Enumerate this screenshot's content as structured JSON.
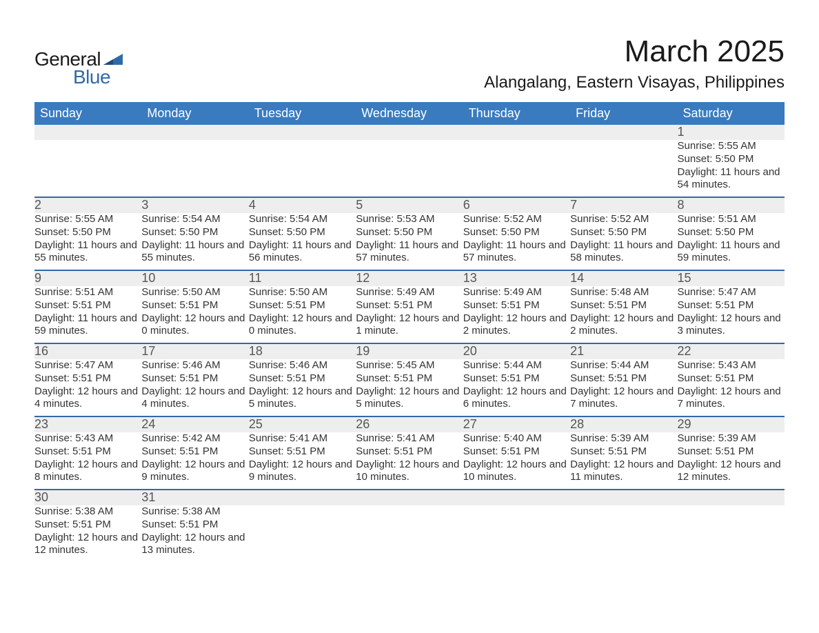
{
  "brand": {
    "text_general": "General",
    "text_blue": "Blue",
    "blue_color": "#2f6aa8"
  },
  "title": {
    "month": "March 2025",
    "location": "Alangalang, Eastern Visayas, Philippines"
  },
  "colors": {
    "header_bg": "#3a7bbf",
    "header_text": "#ffffff",
    "daynum_bg": "#eeeeee",
    "daynum_text": "#555555",
    "detail_text": "#333333",
    "row_separator": "#2f6aa8",
    "page_bg": "#ffffff"
  },
  "fonts": {
    "month_title_size": 44,
    "location_size": 24,
    "dayheader_size": 18,
    "daynum_size": 18,
    "detail_size": 15
  },
  "day_headers": [
    "Sunday",
    "Monday",
    "Tuesday",
    "Wednesday",
    "Thursday",
    "Friday",
    "Saturday"
  ],
  "weeks": [
    [
      null,
      null,
      null,
      null,
      null,
      null,
      {
        "n": "1",
        "sunrise": "5:55 AM",
        "sunset": "5:50 PM",
        "daylight": "11 hours and 54 minutes."
      }
    ],
    [
      {
        "n": "2",
        "sunrise": "5:55 AM",
        "sunset": "5:50 PM",
        "daylight": "11 hours and 55 minutes."
      },
      {
        "n": "3",
        "sunrise": "5:54 AM",
        "sunset": "5:50 PM",
        "daylight": "11 hours and 55 minutes."
      },
      {
        "n": "4",
        "sunrise": "5:54 AM",
        "sunset": "5:50 PM",
        "daylight": "11 hours and 56 minutes."
      },
      {
        "n": "5",
        "sunrise": "5:53 AM",
        "sunset": "5:50 PM",
        "daylight": "11 hours and 57 minutes."
      },
      {
        "n": "6",
        "sunrise": "5:52 AM",
        "sunset": "5:50 PM",
        "daylight": "11 hours and 57 minutes."
      },
      {
        "n": "7",
        "sunrise": "5:52 AM",
        "sunset": "5:50 PM",
        "daylight": "11 hours and 58 minutes."
      },
      {
        "n": "8",
        "sunrise": "5:51 AM",
        "sunset": "5:50 PM",
        "daylight": "11 hours and 59 minutes."
      }
    ],
    [
      {
        "n": "9",
        "sunrise": "5:51 AM",
        "sunset": "5:51 PM",
        "daylight": "11 hours and 59 minutes."
      },
      {
        "n": "10",
        "sunrise": "5:50 AM",
        "sunset": "5:51 PM",
        "daylight": "12 hours and 0 minutes."
      },
      {
        "n": "11",
        "sunrise": "5:50 AM",
        "sunset": "5:51 PM",
        "daylight": "12 hours and 0 minutes."
      },
      {
        "n": "12",
        "sunrise": "5:49 AM",
        "sunset": "5:51 PM",
        "daylight": "12 hours and 1 minute."
      },
      {
        "n": "13",
        "sunrise": "5:49 AM",
        "sunset": "5:51 PM",
        "daylight": "12 hours and 2 minutes."
      },
      {
        "n": "14",
        "sunrise": "5:48 AM",
        "sunset": "5:51 PM",
        "daylight": "12 hours and 2 minutes."
      },
      {
        "n": "15",
        "sunrise": "5:47 AM",
        "sunset": "5:51 PM",
        "daylight": "12 hours and 3 minutes."
      }
    ],
    [
      {
        "n": "16",
        "sunrise": "5:47 AM",
        "sunset": "5:51 PM",
        "daylight": "12 hours and 4 minutes."
      },
      {
        "n": "17",
        "sunrise": "5:46 AM",
        "sunset": "5:51 PM",
        "daylight": "12 hours and 4 minutes."
      },
      {
        "n": "18",
        "sunrise": "5:46 AM",
        "sunset": "5:51 PM",
        "daylight": "12 hours and 5 minutes."
      },
      {
        "n": "19",
        "sunrise": "5:45 AM",
        "sunset": "5:51 PM",
        "daylight": "12 hours and 5 minutes."
      },
      {
        "n": "20",
        "sunrise": "5:44 AM",
        "sunset": "5:51 PM",
        "daylight": "12 hours and 6 minutes."
      },
      {
        "n": "21",
        "sunrise": "5:44 AM",
        "sunset": "5:51 PM",
        "daylight": "12 hours and 7 minutes."
      },
      {
        "n": "22",
        "sunrise": "5:43 AM",
        "sunset": "5:51 PM",
        "daylight": "12 hours and 7 minutes."
      }
    ],
    [
      {
        "n": "23",
        "sunrise": "5:43 AM",
        "sunset": "5:51 PM",
        "daylight": "12 hours and 8 minutes."
      },
      {
        "n": "24",
        "sunrise": "5:42 AM",
        "sunset": "5:51 PM",
        "daylight": "12 hours and 9 minutes."
      },
      {
        "n": "25",
        "sunrise": "5:41 AM",
        "sunset": "5:51 PM",
        "daylight": "12 hours and 9 minutes."
      },
      {
        "n": "26",
        "sunrise": "5:41 AM",
        "sunset": "5:51 PM",
        "daylight": "12 hours and 10 minutes."
      },
      {
        "n": "27",
        "sunrise": "5:40 AM",
        "sunset": "5:51 PM",
        "daylight": "12 hours and 10 minutes."
      },
      {
        "n": "28",
        "sunrise": "5:39 AM",
        "sunset": "5:51 PM",
        "daylight": "12 hours and 11 minutes."
      },
      {
        "n": "29",
        "sunrise": "5:39 AM",
        "sunset": "5:51 PM",
        "daylight": "12 hours and 12 minutes."
      }
    ],
    [
      {
        "n": "30",
        "sunrise": "5:38 AM",
        "sunset": "5:51 PM",
        "daylight": "12 hours and 12 minutes."
      },
      {
        "n": "31",
        "sunrise": "5:38 AM",
        "sunset": "5:51 PM",
        "daylight": "12 hours and 13 minutes."
      },
      null,
      null,
      null,
      null,
      null
    ]
  ],
  "labels": {
    "sunrise": "Sunrise: ",
    "sunset": "Sunset: ",
    "daylight": "Daylight: "
  }
}
